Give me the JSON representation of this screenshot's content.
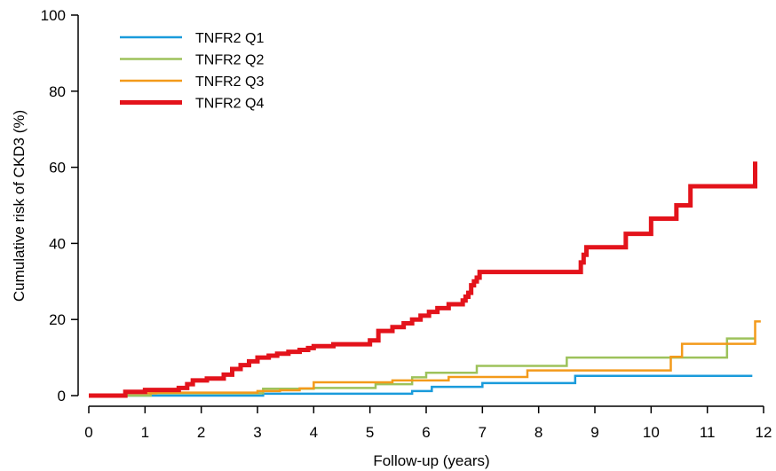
{
  "chart_data": {
    "type": "line",
    "title": "",
    "xlabel": "Follow-up (years)",
    "ylabel": "Cumulative risk of CKD3 (%)",
    "xlim": [
      0,
      12
    ],
    "ylim": [
      0,
      100
    ],
    "x_ticks": [
      0,
      1,
      2,
      3,
      4,
      5,
      6,
      7,
      8,
      9,
      10,
      11,
      12
    ],
    "y_ticks": [
      0,
      20,
      40,
      60,
      80,
      100
    ],
    "step": true,
    "grid": false,
    "legend_position": "top-left",
    "series": [
      {
        "name": "TNFR2 Q1",
        "color": "#1a9bdb",
        "width": 2.5,
        "points": [
          [
            0,
            0
          ],
          [
            3.1,
            0.5
          ],
          [
            5.75,
            1.2
          ],
          [
            6.1,
            2.3
          ],
          [
            7,
            3.3
          ],
          [
            8.65,
            5.2
          ],
          [
            11.8,
            5.2
          ]
        ]
      },
      {
        "name": "TNFR2 Q2",
        "color": "#9dc25b",
        "width": 2.5,
        "points": [
          [
            0,
            0
          ],
          [
            1.1,
            0.6
          ],
          [
            3.1,
            1.8
          ],
          [
            4.0,
            2.0
          ],
          [
            5.1,
            3.0
          ],
          [
            5.75,
            4.8
          ],
          [
            6.0,
            6.0
          ],
          [
            6.9,
            7.8
          ],
          [
            8.5,
            10.0
          ],
          [
            11.35,
            15.0
          ],
          [
            11.85,
            15.0
          ]
        ]
      },
      {
        "name": "TNFR2 Q3",
        "color": "#f39a1a",
        "width": 2.5,
        "points": [
          [
            0,
            0
          ],
          [
            0.65,
            0.6
          ],
          [
            1.2,
            0.8
          ],
          [
            3.0,
            1.2
          ],
          [
            3.4,
            1.4
          ],
          [
            3.75,
            1.9
          ],
          [
            4.0,
            3.5
          ],
          [
            5.4,
            4.0
          ],
          [
            6.4,
            4.9
          ],
          [
            7.8,
            6.6
          ],
          [
            10.35,
            10.2
          ],
          [
            10.55,
            13.6
          ],
          [
            11.85,
            13.6
          ],
          [
            11.85,
            19.5
          ],
          [
            11.95,
            19.5
          ]
        ]
      },
      {
        "name": "TNFR2 Q4",
        "color": "#e3131b",
        "width": 5,
        "points": [
          [
            0,
            0
          ],
          [
            0.65,
            1.0
          ],
          [
            1.0,
            1.5
          ],
          [
            1.6,
            2.0
          ],
          [
            1.75,
            3.0
          ],
          [
            1.85,
            4.0
          ],
          [
            2.1,
            4.5
          ],
          [
            2.4,
            5.5
          ],
          [
            2.55,
            7.0
          ],
          [
            2.7,
            8.0
          ],
          [
            2.85,
            9.0
          ],
          [
            3.0,
            10.0
          ],
          [
            3.2,
            10.5
          ],
          [
            3.35,
            11.0
          ],
          [
            3.55,
            11.5
          ],
          [
            3.75,
            12.0
          ],
          [
            3.9,
            12.5
          ],
          [
            4.0,
            13.0
          ],
          [
            4.35,
            13.5
          ],
          [
            5.0,
            14.5
          ],
          [
            5.15,
            17.0
          ],
          [
            5.4,
            18.0
          ],
          [
            5.6,
            19.0
          ],
          [
            5.75,
            20.0
          ],
          [
            5.9,
            21.0
          ],
          [
            6.05,
            22.0
          ],
          [
            6.2,
            23.0
          ],
          [
            6.4,
            24.0
          ],
          [
            6.65,
            25.0
          ],
          [
            6.7,
            26.0
          ],
          [
            6.75,
            27.0
          ],
          [
            6.8,
            29.0
          ],
          [
            6.85,
            30.0
          ],
          [
            6.9,
            31.0
          ],
          [
            6.95,
            32.5
          ],
          [
            8.75,
            35.0
          ],
          [
            8.8,
            37.0
          ],
          [
            8.85,
            39.0
          ],
          [
            9.55,
            42.5
          ],
          [
            10.0,
            46.5
          ],
          [
            10.45,
            50.0
          ],
          [
            10.7,
            55.0
          ],
          [
            11.85,
            55.0
          ],
          [
            11.85,
            61.5
          ]
        ]
      }
    ]
  }
}
